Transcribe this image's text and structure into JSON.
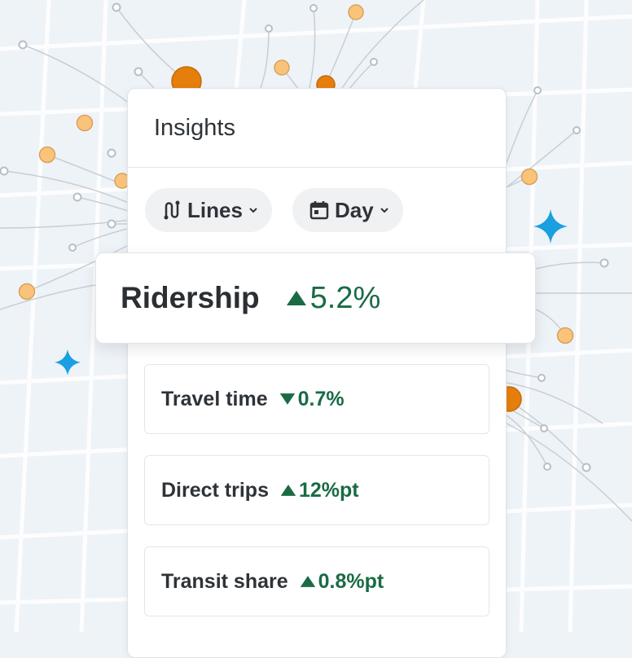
{
  "header": {
    "title": "Insights"
  },
  "filters": [
    {
      "label": "Lines"
    },
    {
      "label": "Day"
    }
  ],
  "highlight": {
    "label": "Ridership",
    "value": "5.2%",
    "direction": "up"
  },
  "metrics": [
    {
      "label": "Travel time",
      "value": "0.7%",
      "direction": "down"
    },
    {
      "label": "Direct trips",
      "value": "12%pt",
      "direction": "up"
    },
    {
      "label": "Transit share",
      "value": "0.8%pt",
      "direction": "up"
    }
  ]
}
